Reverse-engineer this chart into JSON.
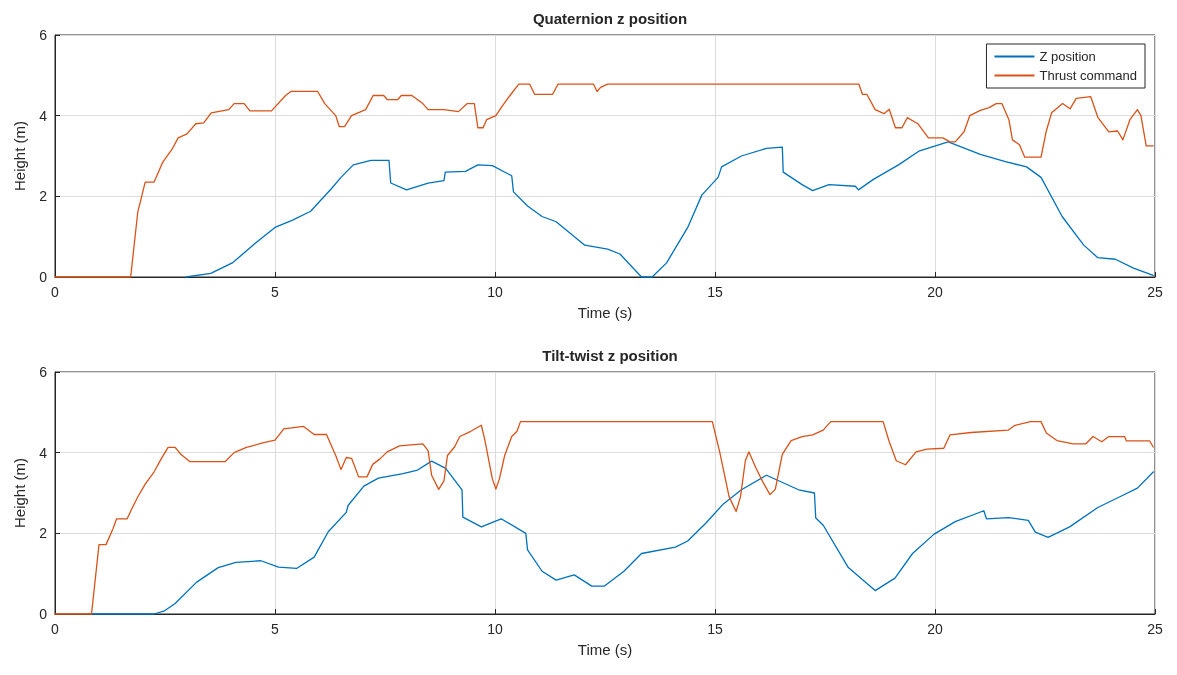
{
  "chart_data": [
    {
      "type": "line",
      "title": "Quaternion z position",
      "xlabel": "Time (s)",
      "ylabel": "Height (m)",
      "xlim": [
        0,
        25
      ],
      "xticks": [
        0,
        5,
        10,
        15,
        20,
        25
      ],
      "ylim": [
        0,
        6
      ],
      "yticks": [
        0,
        2,
        4,
        6
      ],
      "grid": true,
      "legend": "top right",
      "marker": "none",
      "line_style": "solid",
      "series": [
        {
          "name": "Z position",
          "color": "#0072bd",
          "x": [
            2.98,
            3.54,
            4.03,
            4.6,
            5.0,
            5.4,
            5.81,
            6.29,
            6.5,
            6.78,
            7.18,
            7.59,
            7.63,
            7.99,
            8.48,
            8.84,
            8.87,
            9.33,
            9.61,
            9.94,
            10.38,
            10.42,
            10.74,
            11.07,
            11.39,
            12.04,
            12.56,
            12.84,
            13.33,
            13.57,
            13.9,
            14.38,
            14.7,
            15.07,
            15.15,
            15.6,
            16.17,
            16.53,
            16.55,
            16.98,
            17.22,
            17.59,
            18.19,
            18.26,
            18.6,
            19.17,
            19.65,
            20.3,
            21.03,
            21.6,
            22.08,
            22.41,
            22.89,
            23.38,
            23.7,
            24.1,
            24.51,
            24.96
          ],
          "values": [
            0,
            0.09,
            0.35,
            0.88,
            1.23,
            1.41,
            1.63,
            2.2,
            2.47,
            2.78,
            2.89,
            2.89,
            2.33,
            2.16,
            2.33,
            2.39,
            2.6,
            2.62,
            2.78,
            2.76,
            2.51,
            2.11,
            1.76,
            1.5,
            1.37,
            0.79,
            0.69,
            0.57,
            0,
            0,
            0.35,
            1.23,
            2.03,
            2.47,
            2.73,
            3.0,
            3.19,
            3.22,
            2.6,
            2.29,
            2.14,
            2.29,
            2.25,
            2.16,
            2.42,
            2.78,
            3.13,
            3.35,
            3.04,
            2.86,
            2.73,
            2.47,
            1.5,
            0.79,
            0.48,
            0.44,
            0.22,
            0.04
          ]
        },
        {
          "name": "Thrust command",
          "color": "#d95319",
          "x": [
            0,
            1.72,
            1.88,
            2.05,
            2.25,
            2.45,
            2.65,
            2.8,
            3.0,
            3.2,
            3.38,
            3.55,
            3.95,
            4.07,
            4.3,
            4.43,
            4.92,
            5.24,
            5.36,
            5.97,
            6.13,
            6.38,
            6.46,
            6.58,
            6.74,
            7.06,
            7.23,
            7.47,
            7.55,
            7.79,
            7.87,
            8.11,
            8.36,
            8.48,
            8.84,
            9.17,
            9.37,
            9.53,
            9.61,
            9.73,
            9.81,
            10.02,
            10.14,
            10.34,
            10.54,
            10.79,
            10.9,
            11.31,
            11.43,
            12.24,
            12.32,
            12.4,
            12.56,
            18.27,
            18.35,
            18.45,
            18.64,
            18.84,
            18.96,
            19.1,
            19.25,
            19.37,
            19.61,
            19.85,
            20.18,
            20.34,
            20.46,
            20.66,
            20.79,
            21.03,
            21.23,
            21.39,
            21.52,
            21.68,
            21.76,
            21.92,
            22.04,
            22.41,
            22.53,
            22.65,
            22.9,
            23.07,
            23.21,
            23.54,
            23.7,
            23.95,
            24.15,
            24.27,
            24.43,
            24.6,
            24.68,
            24.8,
            24.96
          ],
          "values": [
            0,
            0,
            1.6,
            2.35,
            2.35,
            2.85,
            3.15,
            3.45,
            3.55,
            3.8,
            3.82,
            4.07,
            4.15,
            4.3,
            4.3,
            4.12,
            4.12,
            4.5,
            4.6,
            4.6,
            4.3,
            4.0,
            3.73,
            3.73,
            4.0,
            4.15,
            4.5,
            4.5,
            4.4,
            4.4,
            4.5,
            4.5,
            4.3,
            4.15,
            4.15,
            4.1,
            4.3,
            4.3,
            3.7,
            3.7,
            3.9,
            4.0,
            4.2,
            4.5,
            4.78,
            4.78,
            4.53,
            4.53,
            4.78,
            4.78,
            4.6,
            4.7,
            4.78,
            4.78,
            4.53,
            4.53,
            4.15,
            4.05,
            4.16,
            3.7,
            3.7,
            3.95,
            3.8,
            3.45,
            3.45,
            3.35,
            3.35,
            3.6,
            4.0,
            4.13,
            4.2,
            4.3,
            4.3,
            3.9,
            3.4,
            3.28,
            2.97,
            2.97,
            3.62,
            4.07,
            4.3,
            4.17,
            4.43,
            4.47,
            3.96,
            3.6,
            3.62,
            3.4,
            3.9,
            4.15,
            4.0,
            3.25,
            3.25
          ]
        }
      ]
    },
    {
      "type": "line",
      "title": "Tilt-twist z position",
      "xlabel": "Time (s)",
      "ylabel": "Height (m)",
      "xlim": [
        0,
        25
      ],
      "xticks": [
        0,
        5,
        10,
        15,
        20,
        25
      ],
      "ylim": [
        0,
        6
      ],
      "yticks": [
        0,
        2,
        4,
        6
      ],
      "grid": true,
      "marker": "none",
      "line_style": "solid",
      "series": [
        {
          "color": "#0072bd",
          "x": [
            0.83,
            2.25,
            2.49,
            2.73,
            3.22,
            3.71,
            4.11,
            4.68,
            5.08,
            5.49,
            5.89,
            6.21,
            6.62,
            6.66,
            7.02,
            7.35,
            7.91,
            8.24,
            8.56,
            8.88,
            9.25,
            9.27,
            9.69,
            10.14,
            10.7,
            10.74,
            11.07,
            11.39,
            11.8,
            12.2,
            12.48,
            12.93,
            13.33,
            14.1,
            14.38,
            14.79,
            15.19,
            15.6,
            16.17,
            16.9,
            17.26,
            17.29,
            17.46,
            18.03,
            18.64,
            19.09,
            19.49,
            19.98,
            20.46,
            21.11,
            21.17,
            21.67,
            22.12,
            22.28,
            22.57,
            23.06,
            23.7,
            24.19,
            24.6,
            24.96
          ],
          "values": [
            0,
            0,
            0.08,
            0.26,
            0.79,
            1.15,
            1.28,
            1.32,
            1.16,
            1.13,
            1.41,
            2.04,
            2.52,
            2.69,
            3.17,
            3.37,
            3.48,
            3.57,
            3.79,
            3.61,
            3.08,
            2.4,
            2.16,
            2.36,
            2.0,
            1.59,
            1.06,
            0.84,
            0.97,
            0.69,
            0.69,
            1.06,
            1.5,
            1.66,
            1.81,
            2.25,
            2.73,
            3.08,
            3.44,
            3.08,
            3.0,
            2.38,
            2.2,
            1.15,
            0.58,
            0.89,
            1.5,
            1.98,
            2.29,
            2.56,
            2.36,
            2.39,
            2.32,
            2.03,
            1.9,
            2.16,
            2.64,
            2.9,
            3.12,
            3.52
          ]
        },
        {
          "color": "#d95319",
          "x": [
            0,
            0.83,
            1.0,
            1.16,
            1.32,
            1.4,
            1.64,
            1.76,
            1.88,
            2.05,
            2.25,
            2.41,
            2.57,
            2.73,
            2.86,
            3.06,
            3.87,
            4.07,
            4.35,
            4.72,
            5.0,
            5.2,
            5.65,
            5.89,
            6.17,
            6.38,
            6.5,
            6.62,
            6.74,
            6.9,
            7.09,
            7.22,
            7.38,
            7.55,
            7.83,
            8.36,
            8.48,
            8.56,
            8.72,
            8.84,
            8.92,
            9.08,
            9.2,
            9.45,
            9.69,
            9.77,
            9.94,
            10.02,
            10.1,
            10.22,
            10.38,
            10.5,
            10.58,
            14.94,
            15.11,
            15.32,
            15.48,
            15.58,
            15.69,
            15.77,
            15.93,
            16.09,
            16.25,
            16.37,
            16.53,
            16.73,
            16.98,
            17.22,
            17.46,
            17.63,
            18.82,
            18.96,
            19.12,
            19.33,
            19.57,
            19.82,
            20.2,
            20.34,
            20.82,
            21.67,
            21.8,
            22.17,
            22.41,
            22.53,
            22.77,
            23.14,
            23.43,
            23.59,
            23.79,
            23.95,
            24.31,
            24.35,
            24.88,
            24.96
          ],
          "values": [
            0,
            0,
            1.72,
            1.72,
            2.12,
            2.36,
            2.36,
            2.64,
            2.9,
            3.22,
            3.52,
            3.84,
            4.13,
            4.13,
            3.96,
            3.78,
            3.78,
            4.0,
            4.13,
            4.24,
            4.31,
            4.59,
            4.65,
            4.45,
            4.45,
            3.93,
            3.58,
            3.88,
            3.86,
            3.4,
            3.4,
            3.71,
            3.84,
            4.02,
            4.17,
            4.22,
            4.05,
            3.44,
            3.09,
            3.3,
            3.93,
            4.14,
            4.4,
            4.53,
            4.68,
            4.31,
            3.35,
            3.1,
            3.35,
            3.93,
            4.4,
            4.53,
            4.77,
            4.77,
            4.0,
            2.91,
            2.54,
            2.91,
            3.8,
            4.02,
            3.62,
            3.27,
            2.96,
            3.09,
            3.96,
            4.3,
            4.4,
            4.44,
            4.56,
            4.77,
            4.77,
            4.27,
            3.8,
            3.7,
            4.02,
            4.09,
            4.11,
            4.44,
            4.5,
            4.56,
            4.67,
            4.77,
            4.77,
            4.49,
            4.3,
            4.22,
            4.22,
            4.4,
            4.27,
            4.4,
            4.4,
            4.29,
            4.29,
            4.14
          ]
        }
      ]
    }
  ]
}
